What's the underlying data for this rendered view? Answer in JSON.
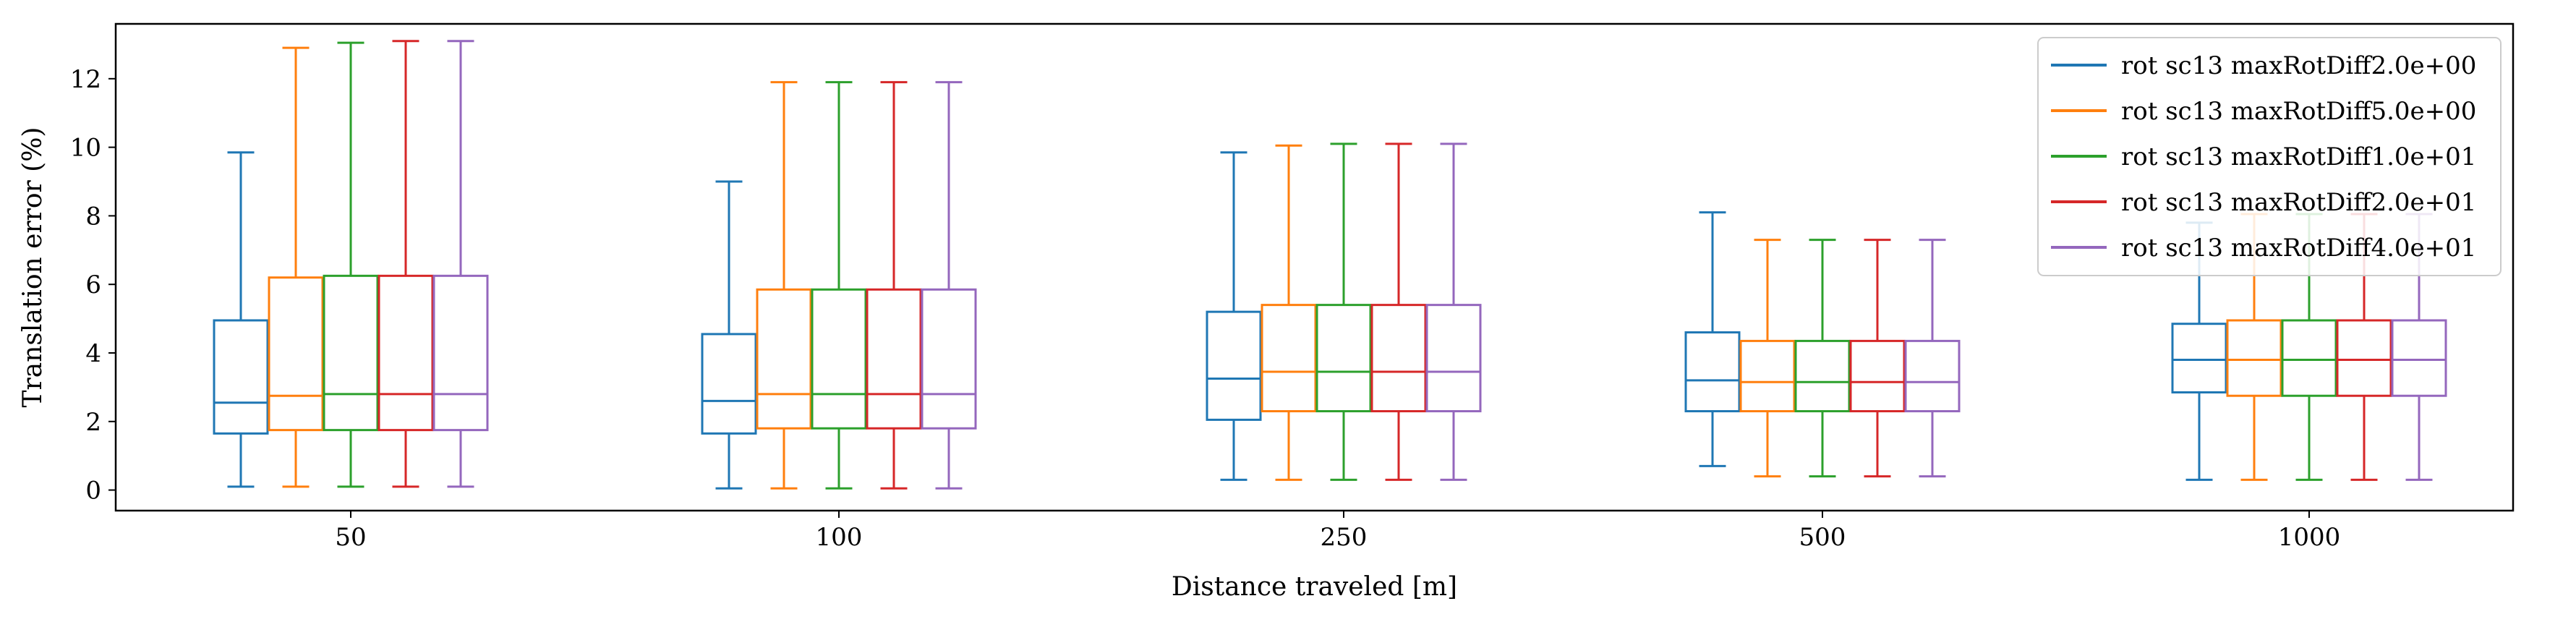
{
  "chart_data": {
    "type": "box",
    "xlabel": "Distance traveled [m]",
    "ylabel": "Translation error (%)",
    "categories": [
      "50",
      "100",
      "250",
      "500",
      "1000"
    ],
    "ylim": [
      -0.6,
      13.6
    ],
    "yticks": [
      0,
      2,
      4,
      6,
      8,
      10,
      12
    ],
    "grid": false,
    "legend_position": "top-right",
    "series": [
      {
        "name": "rot sc13 maxRotDiff2.0e+00",
        "color": "#1f77b4",
        "boxes": [
          {
            "whislo": 0.1,
            "q1": 1.65,
            "med": 2.55,
            "q3": 4.95,
            "whishi": 9.85
          },
          {
            "whislo": 0.05,
            "q1": 1.65,
            "med": 2.6,
            "q3": 4.55,
            "whishi": 9.0
          },
          {
            "whislo": 0.3,
            "q1": 2.05,
            "med": 3.25,
            "q3": 5.2,
            "whishi": 9.85
          },
          {
            "whislo": 0.7,
            "q1": 2.3,
            "med": 3.2,
            "q3": 4.6,
            "whishi": 8.1
          },
          {
            "whislo": 0.3,
            "q1": 2.85,
            "med": 3.8,
            "q3": 4.85,
            "whishi": 7.8
          }
        ]
      },
      {
        "name": "rot sc13 maxRotDiff5.0e+00",
        "color": "#ff7f0e",
        "boxes": [
          {
            "whislo": 0.1,
            "q1": 1.75,
            "med": 2.75,
            "q3": 6.2,
            "whishi": 12.9
          },
          {
            "whislo": 0.05,
            "q1": 1.8,
            "med": 2.8,
            "q3": 5.85,
            "whishi": 11.9
          },
          {
            "whislo": 0.3,
            "q1": 2.3,
            "med": 3.45,
            "q3": 5.4,
            "whishi": 10.05
          },
          {
            "whislo": 0.4,
            "q1": 2.3,
            "med": 3.15,
            "q3": 4.35,
            "whishi": 7.3
          },
          {
            "whislo": 0.3,
            "q1": 2.75,
            "med": 3.8,
            "q3": 4.95,
            "whishi": 8.05
          }
        ]
      },
      {
        "name": "rot sc13 maxRotDiff1.0e+01",
        "color": "#2ca02c",
        "boxes": [
          {
            "whislo": 0.1,
            "q1": 1.75,
            "med": 2.8,
            "q3": 6.25,
            "whishi": 13.05
          },
          {
            "whislo": 0.05,
            "q1": 1.8,
            "med": 2.8,
            "q3": 5.85,
            "whishi": 11.9
          },
          {
            "whislo": 0.3,
            "q1": 2.3,
            "med": 3.45,
            "q3": 5.4,
            "whishi": 10.1
          },
          {
            "whislo": 0.4,
            "q1": 2.3,
            "med": 3.15,
            "q3": 4.35,
            "whishi": 7.3
          },
          {
            "whislo": 0.3,
            "q1": 2.75,
            "med": 3.8,
            "q3": 4.95,
            "whishi": 8.05
          }
        ]
      },
      {
        "name": "rot sc13 maxRotDiff2.0e+01",
        "color": "#d62728",
        "boxes": [
          {
            "whislo": 0.1,
            "q1": 1.75,
            "med": 2.8,
            "q3": 6.25,
            "whishi": 13.1
          },
          {
            "whislo": 0.05,
            "q1": 1.8,
            "med": 2.8,
            "q3": 5.85,
            "whishi": 11.9
          },
          {
            "whislo": 0.3,
            "q1": 2.3,
            "med": 3.45,
            "q3": 5.4,
            "whishi": 10.1
          },
          {
            "whislo": 0.4,
            "q1": 2.3,
            "med": 3.15,
            "q3": 4.35,
            "whishi": 7.3
          },
          {
            "whislo": 0.3,
            "q1": 2.75,
            "med": 3.8,
            "q3": 4.95,
            "whishi": 8.05
          }
        ]
      },
      {
        "name": "rot sc13 maxRotDiff4.0e+01",
        "color": "#9467bd",
        "boxes": [
          {
            "whislo": 0.1,
            "q1": 1.75,
            "med": 2.8,
            "q3": 6.25,
            "whishi": 13.1
          },
          {
            "whislo": 0.05,
            "q1": 1.8,
            "med": 2.8,
            "q3": 5.85,
            "whishi": 11.9
          },
          {
            "whislo": 0.3,
            "q1": 2.3,
            "med": 3.45,
            "q3": 5.4,
            "whishi": 10.1
          },
          {
            "whislo": 0.4,
            "q1": 2.3,
            "med": 3.15,
            "q3": 4.35,
            "whishi": 7.3
          },
          {
            "whislo": 0.3,
            "q1": 2.75,
            "med": 3.8,
            "q3": 4.95,
            "whishi": 8.05
          }
        ]
      }
    ]
  }
}
